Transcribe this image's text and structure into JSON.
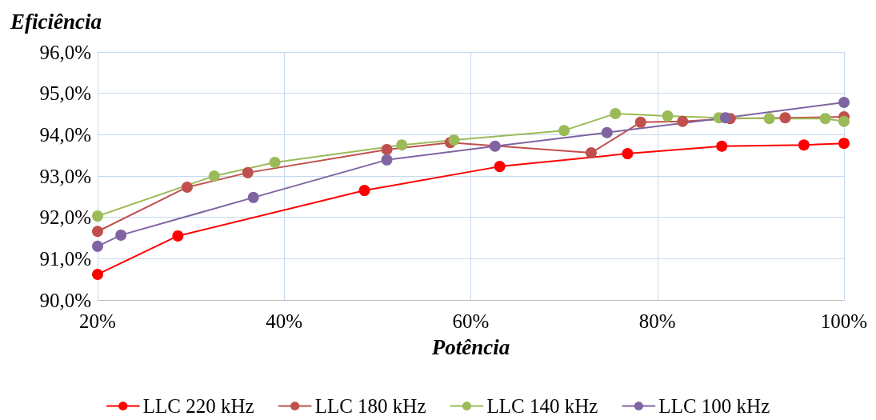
{
  "chart_data": {
    "type": "line",
    "xlabel": "Potência",
    "ylabel": "Eficiência",
    "xlim": [
      20,
      100
    ],
    "xticks": [
      {
        "value": 20,
        "label": "20%"
      },
      {
        "value": 40,
        "label": "40%"
      },
      {
        "value": 60,
        "label": "60%"
      },
      {
        "value": 80,
        "label": "80%"
      },
      {
        "value": 100,
        "label": "100%"
      }
    ],
    "ylim": [
      90,
      96
    ],
    "yticks": [
      {
        "value": 90,
        "label": "90,0%"
      },
      {
        "value": 91,
        "label": "91,0%"
      },
      {
        "value": 92,
        "label": "92,0%"
      },
      {
        "value": 93,
        "label": "93,0%"
      },
      {
        "value": 94,
        "label": "94,0%"
      },
      {
        "value": 95,
        "label": "95,0%"
      },
      {
        "value": 96,
        "label": "96,0%"
      }
    ],
    "grid": true,
    "legend": "bottom",
    "marker": "circle",
    "line_style": "solid",
    "series": [
      {
        "name": "LLC 220 kHz",
        "color": "#ff0000",
        "x": [
          20,
          28.6,
          48.6,
          63.1,
          76.8,
          86.9,
          95.7,
          100
        ],
        "values": [
          90.62,
          91.55,
          92.65,
          93.23,
          93.54,
          93.72,
          93.75,
          93.79
        ]
      },
      {
        "name": "LLC 180 kHz",
        "color": "#c0504d",
        "x": [
          20,
          29.6,
          36.1,
          51.0,
          57.8,
          72.9,
          78.2,
          82.7,
          87.8,
          93.7,
          100
        ],
        "values": [
          91.66,
          92.73,
          93.08,
          93.64,
          93.81,
          93.56,
          94.3,
          94.32,
          94.39,
          94.41,
          94.43
        ]
      },
      {
        "name": "LLC 140 kHz",
        "color": "#9bbb59",
        "x": [
          20,
          32.5,
          39.0,
          52.6,
          58.2,
          70.0,
          75.5,
          81.1,
          86.6,
          92.0,
          98.0,
          100
        ],
        "values": [
          92.03,
          93.0,
          93.33,
          93.75,
          93.87,
          94.1,
          94.51,
          94.45,
          94.41,
          94.39,
          94.39,
          94.32
        ]
      },
      {
        "name": "LLC 100 kHz",
        "color": "#8064a2",
        "x": [
          20,
          22.5,
          36.7,
          51.0,
          62.6,
          74.6,
          87.3,
          100
        ],
        "values": [
          91.3,
          91.57,
          92.48,
          93.39,
          93.72,
          94.05,
          94.41,
          94.78
        ]
      }
    ]
  }
}
